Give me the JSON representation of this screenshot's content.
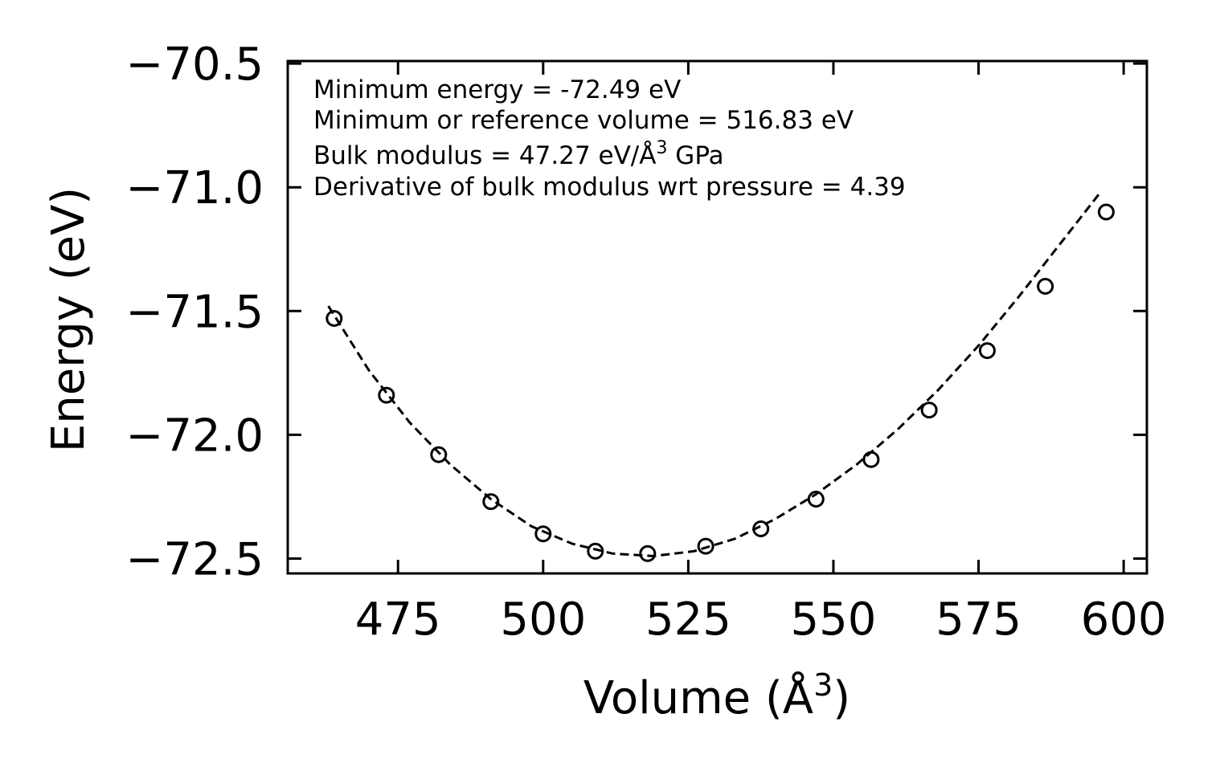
{
  "chart_data": {
    "type": "scatter",
    "xlabel": "Volume (Å",
    "xlabel_sup": "3",
    "xlabel_close": ")",
    "ylabel": "Energy (eV)",
    "xlim": [
      456,
      604
    ],
    "ylim": [
      -72.56,
      -70.49
    ],
    "xticks": [
      475,
      500,
      525,
      550,
      575,
      600
    ],
    "xtick_labels": [
      "475",
      "500",
      "525",
      "550",
      "575",
      "600"
    ],
    "yticks": [
      -72.5,
      -72.0,
      -71.5,
      -71.0,
      -70.5
    ],
    "ytick_labels": [
      "−72.5",
      "−72.0",
      "−71.5",
      "−71.0",
      "−70.5"
    ],
    "series": [
      {
        "name": "data",
        "style": "open-circle",
        "x": [
          464.0,
          473.0,
          482.0,
          491.0,
          500.0,
          509.0,
          518.0,
          528.0,
          537.5,
          547.0,
          556.5,
          566.5,
          576.5,
          586.5,
          597.0
        ],
        "y": [
          -71.53,
          -71.84,
          -72.08,
          -72.27,
          -72.4,
          -72.47,
          -72.48,
          -72.45,
          -72.38,
          -72.26,
          -72.1,
          -71.9,
          -71.66,
          -71.4,
          -71.1
        ]
      },
      {
        "name": "fit",
        "style": "dashed-line",
        "x": [
          463,
          470,
          477,
          484,
          491,
          498,
          505,
          512,
          519,
          526,
          533,
          540,
          547,
          554,
          561,
          568,
          575,
          582,
          589,
          596
        ],
        "y": [
          -71.48,
          -71.74,
          -71.95,
          -72.12,
          -72.26,
          -72.37,
          -72.44,
          -72.48,
          -72.49,
          -72.47,
          -72.42,
          -72.34,
          -72.24,
          -72.12,
          -71.98,
          -71.82,
          -71.64,
          -71.44,
          -71.23,
          -71.02
        ]
      }
    ],
    "annotations": [
      "Minimum energy = -72.49 eV",
      "Minimum or reference volume = 516.83 eV",
      "Bulk modulus = 47.27 eV/Å",
      "Derivative of bulk modulus wrt pressure = 4.39"
    ],
    "annotation_bulk_sup": "3",
    "annotation_bulk_tail": " GPa",
    "grid": false,
    "legend": "none"
  }
}
